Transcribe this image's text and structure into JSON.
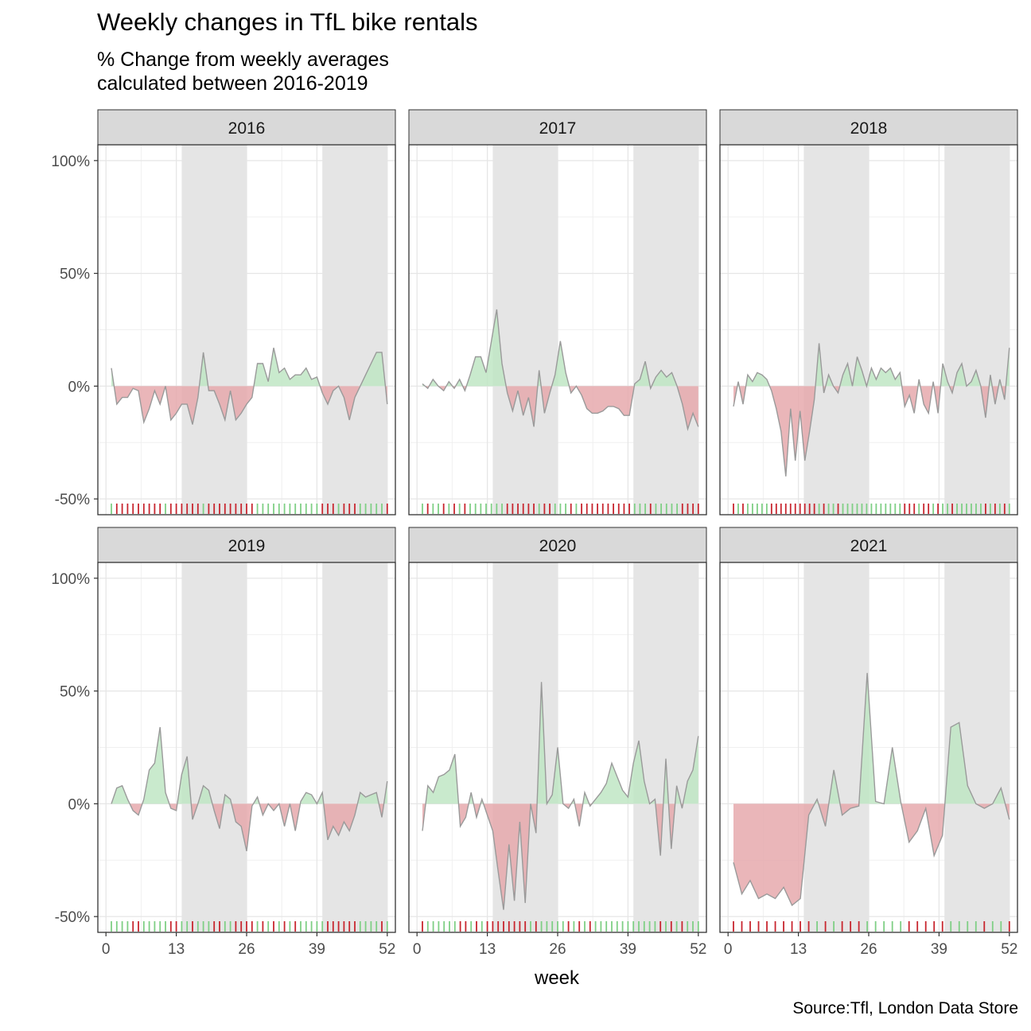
{
  "chart_data": {
    "type": "area",
    "title": "Weekly changes in TfL bike rentals",
    "subtitle": "% Change from weekly averages\ncalculated between 2016-2019",
    "caption": "Source:Tfl, London Data Store",
    "xlabel": "week",
    "ylabel": "",
    "x_ticks": [
      0,
      13,
      26,
      39,
      52
    ],
    "xlim": [
      -1.5,
      53.5
    ],
    "y_ticks": [
      100,
      50,
      0,
      -50
    ],
    "y_tick_labels": [
      "100%",
      "50%",
      "0%",
      "-50%"
    ],
    "ylim": [
      -57,
      107
    ],
    "shaded_week_ranges": [
      [
        14,
        26
      ],
      [
        40,
        52
      ]
    ],
    "colors": {
      "positive_fill": "#bfe6c4",
      "negative_fill": "#e6a9ad",
      "positive_rug": "#7fcf85",
      "negative_rug": "#c8262f",
      "line": "#9a9a9a",
      "shade": "#e5e5e5",
      "strip": "#d9d9d9"
    },
    "panels": [
      {
        "year": "2016",
        "values": [
          8,
          -8,
          -5,
          -5,
          -1,
          -2,
          -16,
          -10,
          -2,
          -8,
          0,
          -15,
          -12,
          -8,
          -8,
          -17,
          -5,
          15,
          -2,
          -2,
          -8,
          -15,
          -2,
          -15,
          -12,
          -8,
          -5,
          10,
          10,
          2,
          17,
          6,
          8,
          3,
          5,
          5,
          8,
          3,
          4,
          -3,
          -8,
          -2,
          0,
          -5,
          -15,
          -5,
          0,
          5,
          10,
          15,
          15,
          -8
        ]
      },
      {
        "year": "2017",
        "values": [
          1,
          -1,
          3,
          0,
          -2,
          2,
          -1,
          3,
          -2,
          5,
          13,
          13,
          6,
          20,
          34,
          10,
          -3,
          -11,
          -2,
          -13,
          -5,
          -18,
          7,
          -12,
          -3,
          5,
          20,
          6,
          -3,
          0,
          -4,
          -10,
          -12,
          -12,
          -11,
          -9,
          -9,
          -10,
          -13,
          -13,
          1,
          3,
          11,
          -1,
          4,
          7,
          4,
          6,
          0,
          -8,
          -19,
          -12,
          -18
        ]
      },
      {
        "year": "2018",
        "values": [
          -9,
          2,
          -8,
          5,
          2,
          6,
          5,
          3,
          -2,
          -10,
          -20,
          -40,
          -10,
          -33,
          -11,
          -33,
          -20,
          -6,
          19,
          -3,
          5,
          0,
          -3,
          5,
          10,
          0,
          13,
          7,
          0,
          8,
          3,
          8,
          6,
          8,
          3,
          6,
          -9,
          -4,
          -12,
          3,
          -8,
          -12,
          2,
          -12,
          10,
          2,
          -3,
          6,
          10,
          0,
          2,
          7,
          0,
          -14,
          5,
          -8,
          3,
          -6,
          17
        ]
      },
      {
        "year": "2019",
        "values": [
          0,
          7,
          8,
          2,
          -3,
          -5,
          2,
          15,
          18,
          34,
          5,
          -2,
          -3,
          13,
          21,
          -7,
          0,
          8,
          6,
          -3,
          -11,
          4,
          2,
          -8,
          -10,
          -21,
          -1,
          3,
          -5,
          0,
          -3,
          0,
          -10,
          0,
          -12,
          1,
          5,
          4,
          0,
          5,
          -16,
          -10,
          -14,
          -8,
          -12,
          -5,
          5,
          3,
          4,
          5,
          -6,
          10
        ]
      },
      {
        "year": "2020",
        "values": [
          -12,
          8,
          5,
          12,
          13,
          15,
          22,
          -10,
          -6,
          5,
          -6,
          2,
          -5,
          -12,
          -30,
          -47,
          -18,
          -43,
          -8,
          -44,
          0,
          -13,
          54,
          0,
          4,
          25,
          0,
          -2,
          2,
          -10,
          5,
          -1,
          2,
          5,
          9,
          18,
          12,
          6,
          3,
          18,
          28,
          10,
          0,
          2,
          -23,
          20,
          -20,
          8,
          -2,
          10,
          15,
          30
        ]
      },
      {
        "year": "2021",
        "values": [
          -26,
          -40,
          -34,
          -42,
          -40,
          -42,
          -37,
          -45,
          -42,
          -5,
          2,
          -10,
          15,
          -5,
          -2,
          -1,
          58,
          1,
          0,
          25,
          1,
          -17,
          -12,
          -2,
          -23,
          -14,
          34,
          36,
          8,
          0,
          -2,
          0,
          7,
          -7
        ]
      }
    ]
  }
}
